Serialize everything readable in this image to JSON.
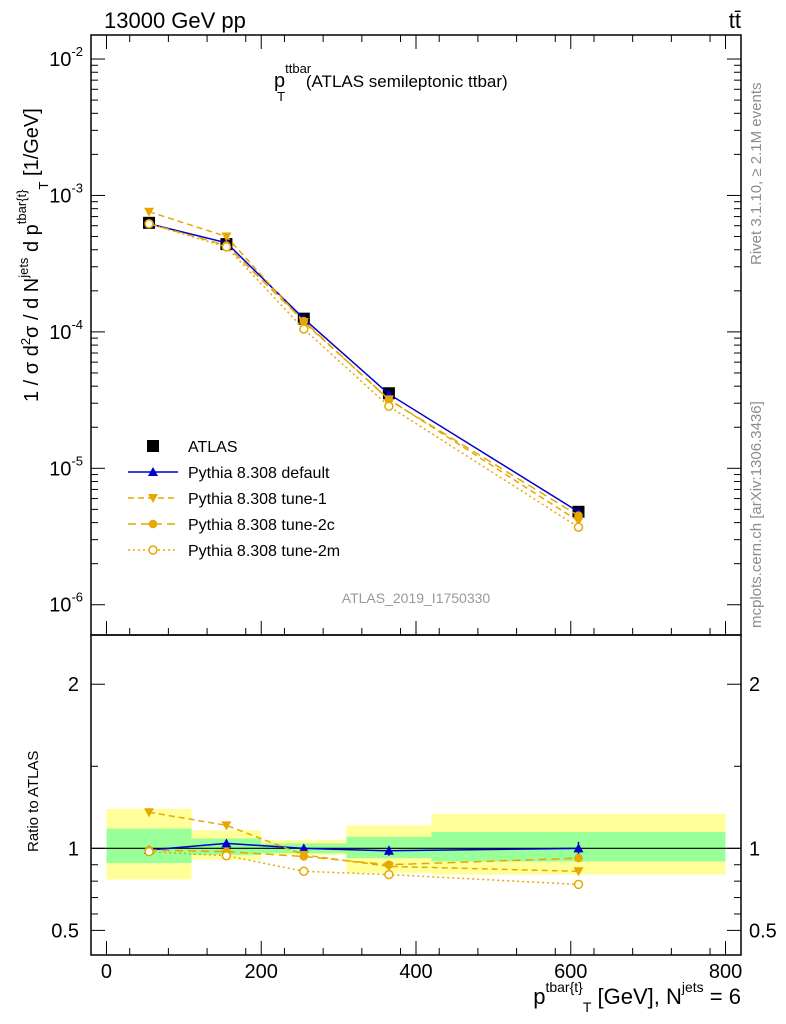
{
  "header": {
    "energy_label": "13000 GeV pp",
    "process_label": "tt̄"
  },
  "side": {
    "rivet_label": "Rivet 3.1.10, ≥ 2.1M events",
    "mcplots_label": "mcplots.cern.ch [arXiv:1306.3436]"
  },
  "main": {
    "title_main": "p",
    "title_sup": "ttbar",
    "title_sub": "T",
    "title_rest": " (ATLAS semileptonic ttbar)",
    "ylabel": "1 / σ d²σ / d N^jets d p^tbar{t}_T [1/GeV]",
    "watermark": "ATLAS_2019_I1750330"
  },
  "ratio": {
    "ylabel": "Ratio to ATLAS"
  },
  "xaxis": {
    "label": "p^tbar{t}_T [GeV], N^jets = 6"
  },
  "colors": {
    "data": "#000000",
    "default": "#0000cc",
    "tune": "#e6a800",
    "band_inner": "#99ff99",
    "band_outer": "#ffff99"
  },
  "chart_data": {
    "type": "line",
    "x_range": [
      -20,
      820
    ],
    "main_yscale": "log",
    "main_ylim": [
      6e-07,
      0.015
    ],
    "ratio_ylim": [
      0.35,
      2.3
    ],
    "bins": [
      [
        0,
        110
      ],
      [
        110,
        200
      ],
      [
        200,
        310
      ],
      [
        310,
        420
      ],
      [
        420,
        800
      ]
    ],
    "x": [
      55,
      155,
      255,
      365,
      610
    ],
    "x_ticks": [
      "0",
      "200",
      "400",
      "600",
      "800"
    ],
    "main_y_ticks": [
      "10^-6",
      "10^-5",
      "10^-4",
      "10^-3",
      "10^-2"
    ],
    "ratio_y_ticks": [
      "0.5",
      "1",
      "2"
    ],
    "legend_position": "lower-left",
    "series": [
      {
        "name": "ATLAS",
        "style": "data",
        "values": [
          0.00063,
          0.00044,
          0.000125,
          3.55e-05,
          4.8e-06
        ],
        "ratio": [
          1.0,
          1.0,
          1.0,
          1.0,
          1.0
        ]
      },
      {
        "name": "Pythia 8.308 default",
        "style": "default",
        "values": [
          0.00062,
          0.00045,
          0.000125,
          3.5e-05,
          4.8e-06
        ],
        "ratio": [
          0.99,
          1.03,
          1.0,
          0.985,
          1.0
        ],
        "ratio_err": [
          0.02,
          0.02,
          0.02,
          0.03,
          0.04
        ]
      },
      {
        "name": "Pythia 8.308 tune-1",
        "style": "tune1",
        "values": [
          0.00076,
          0.0005,
          0.000118,
          3.2e-05,
          4.1e-06
        ],
        "ratio": [
          1.22,
          1.14,
          0.96,
          0.89,
          0.86
        ]
      },
      {
        "name": "Pythia 8.308 tune-2c",
        "style": "tune2c",
        "values": [
          0.00062,
          0.00043,
          0.00012,
          3.18e-05,
          4.5e-06
        ],
        "ratio": [
          0.99,
          0.98,
          0.95,
          0.9,
          0.94
        ]
      },
      {
        "name": "Pythia 8.308 tune-2m",
        "style": "tune2m",
        "values": [
          0.00062,
          0.00042,
          0.000105,
          2.85e-05,
          3.7e-06
        ],
        "ratio": [
          0.98,
          0.955,
          0.86,
          0.84,
          0.78
        ]
      }
    ],
    "bands": {
      "inner": [
        [
          0.91,
          1.12
        ],
        [
          0.96,
          1.06
        ],
        [
          0.97,
          1.03
        ],
        [
          0.94,
          1.07
        ],
        [
          0.92,
          1.1
        ]
      ],
      "outer": [
        [
          0.81,
          1.24
        ],
        [
          0.93,
          1.11
        ],
        [
          0.96,
          1.05
        ],
        [
          0.85,
          1.14
        ],
        [
          0.84,
          1.21
        ]
      ]
    }
  }
}
